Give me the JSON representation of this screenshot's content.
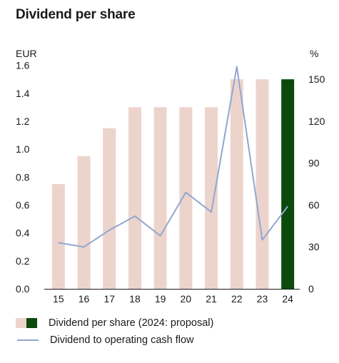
{
  "title": "Dividend per share",
  "colors": {
    "bar": "#ecd4cc",
    "bar_highlight": "#0c4a0c",
    "line": "#93a6d0",
    "axis": "#1a1a1a"
  },
  "chart_data": {
    "type": "bar",
    "categories": [
      "15",
      "16",
      "17",
      "18",
      "19",
      "20",
      "21",
      "22",
      "23",
      "24"
    ],
    "series": [
      {
        "name": "Dividend per share (2024: proposal)",
        "type": "bar",
        "axis": "left",
        "values": [
          0.75,
          0.95,
          1.15,
          1.3,
          1.3,
          1.3,
          1.3,
          1.5,
          1.5,
          1.5
        ],
        "highlight_index": 9
      },
      {
        "name": "Dividend to operating cash flow",
        "type": "line",
        "axis": "right",
        "values": [
          33,
          30,
          42,
          52,
          38,
          69,
          55,
          159,
          35,
          59
        ]
      }
    ],
    "y_left": {
      "unit": "EUR",
      "range": [
        0,
        1.7
      ],
      "ticks": [
        "0.0",
        "0.2",
        "0.4",
        "0.6",
        "0.8",
        "1.0",
        "1.2",
        "1.4",
        "1.6"
      ]
    },
    "y_right": {
      "unit": "%",
      "range": [
        0,
        170
      ],
      "ticks": [
        "0",
        "30",
        "60",
        "90",
        "120",
        "150"
      ]
    },
    "grid": false,
    "legend_position": "bottom-left"
  }
}
